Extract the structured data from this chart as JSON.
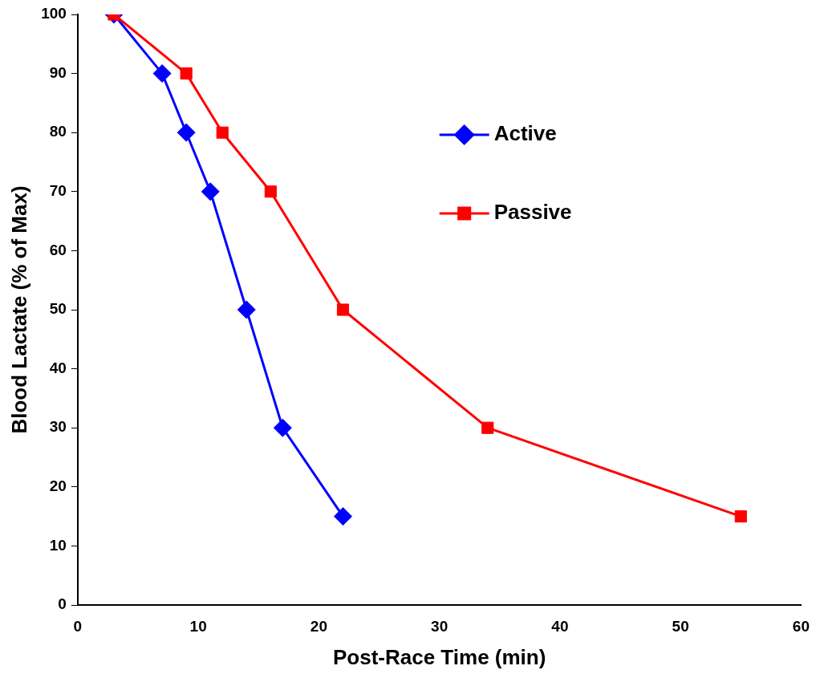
{
  "chart_data": {
    "type": "line",
    "xlabel": "Post-Race Time (min)",
    "ylabel": "Blood Lactate (% of Max)",
    "xlim": [
      0,
      60
    ],
    "xticks": [
      0,
      10,
      20,
      30,
      40,
      50,
      60
    ],
    "ylim": [
      0,
      100
    ],
    "yticks": [
      0,
      10,
      20,
      30,
      40,
      50,
      60,
      70,
      80,
      90,
      100
    ],
    "grid": false,
    "legend": "top right",
    "line_style": "solid",
    "series": [
      {
        "name": "Active",
        "color": "#0000ff",
        "marker": "diamond",
        "x": [
          3,
          7,
          9,
          11,
          14,
          17,
          22
        ],
        "values": [
          100,
          90,
          80,
          70,
          50,
          30,
          15
        ]
      },
      {
        "name": "Passive",
        "color": "#ff0000",
        "marker": "square",
        "x": [
          3,
          9,
          12,
          16,
          22,
          34,
          55
        ],
        "values": [
          100,
          90,
          80,
          70,
          50,
          30,
          15
        ]
      }
    ]
  }
}
